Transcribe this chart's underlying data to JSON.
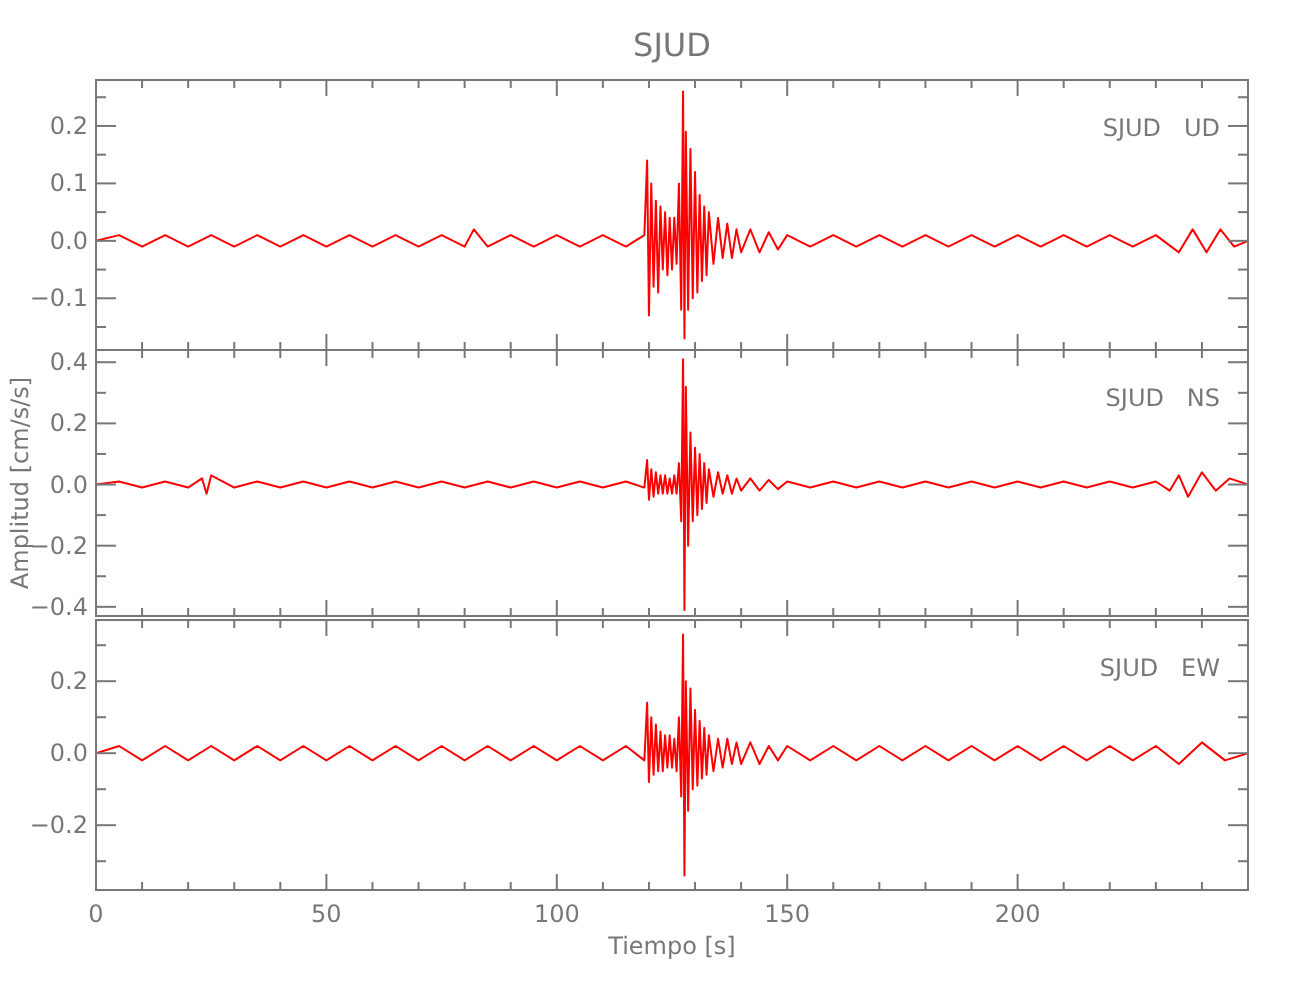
{
  "chart_data": [
    {
      "type": "line",
      "title": "SJUD",
      "annotations": [
        "SJUD   UD"
      ],
      "tick_labels": "y",
      "xlim": [
        0,
        250
      ],
      "ylim": [
        -0.19,
        0.28
      ],
      "xticks": [
        0,
        {
          "value": 10,
          "label": null
        },
        {
          "value": 20,
          "label": null
        },
        {
          "value": 30,
          "label": null
        },
        {
          "value": 40,
          "label": null
        },
        50,
        {
          "value": 60,
          "label": null
        },
        {
          "value": 70,
          "label": null
        },
        {
          "value": 80,
          "label": null
        },
        {
          "value": 90,
          "label": null
        },
        100,
        {
          "value": 110,
          "label": null
        },
        {
          "value": 120,
          "label": null
        },
        {
          "value": 130,
          "label": null
        },
        {
          "value": 140,
          "label": null
        },
        150,
        {
          "value": 160,
          "label": null
        },
        {
          "value": 170,
          "label": null
        },
        {
          "value": 180,
          "label": null
        },
        {
          "value": 190,
          "label": null
        },
        200,
        {
          "value": 210,
          "label": null
        },
        {
          "value": 220,
          "label": null
        },
        {
          "value": 230,
          "label": null
        },
        {
          "value": 240,
          "label": null
        }
      ],
      "yticks": [
        {
          "value": -0.15,
          "label": null
        },
        {
          "value": -0.1,
          "label": "−0.1"
        },
        {
          "value": -0.05,
          "label": null
        },
        {
          "value": 0,
          "label": "0.0"
        },
        {
          "value": 0.05,
          "label": null
        },
        0.1,
        {
          "value": 0.15,
          "label": null
        },
        0.2,
        {
          "value": 0.25,
          "label": null
        }
      ],
      "x": [
        0,
        5,
        10,
        15,
        20,
        25,
        30,
        35,
        40,
        45,
        50,
        55,
        60,
        65,
        70,
        75,
        80,
        82,
        85,
        90,
        95,
        100,
        105,
        110,
        115,
        119,
        119.6,
        120,
        120.5,
        121,
        121.5,
        122,
        122.5,
        123,
        123.5,
        124,
        124.5,
        125,
        125.5,
        126,
        126.5,
        127,
        127.4,
        127.7,
        128,
        128.5,
        129,
        129.5,
        130,
        130.5,
        131,
        131.5,
        132,
        132.5,
        133,
        134,
        135,
        136,
        137,
        138,
        139,
        140,
        142,
        144,
        146,
        148,
        150,
        155,
        160,
        165,
        170,
        175,
        180,
        185,
        190,
        195,
        200,
        205,
        210,
        215,
        220,
        225,
        230,
        235,
        238,
        241,
        244,
        247,
        250
      ],
      "series": [
        {
          "color": "#ff0000",
          "values": [
            0,
            0.01,
            -0.01,
            0.01,
            -0.01,
            0.01,
            -0.01,
            0.01,
            -0.01,
            0.01,
            -0.01,
            0.01,
            -0.01,
            0.01,
            -0.01,
            0.01,
            -0.01,
            0.02,
            -0.01,
            0.01,
            -0.01,
            0.01,
            -0.01,
            0.01,
            -0.01,
            0.01,
            0.14,
            -0.13,
            0.1,
            -0.08,
            0.07,
            -0.09,
            0.06,
            -0.05,
            0.05,
            -0.06,
            0.04,
            -0.05,
            0.04,
            -0.04,
            0.1,
            -0.12,
            0.26,
            -0.17,
            0.19,
            -0.12,
            0.16,
            -0.1,
            0.12,
            -0.09,
            0.08,
            -0.07,
            0.06,
            -0.06,
            0.05,
            -0.04,
            0.04,
            -0.03,
            0.03,
            -0.03,
            0.02,
            -0.02,
            0.02,
            -0.02,
            0.015,
            -0.015,
            0.01,
            -0.01,
            0.01,
            -0.01,
            0.01,
            -0.01,
            0.01,
            -0.01,
            0.01,
            -0.01,
            0.01,
            -0.01,
            0.01,
            -0.01,
            0.01,
            -0.01,
            0.01,
            -0.02,
            0.02,
            -0.02,
            0.02,
            -0.01,
            0
          ]
        }
      ]
    },
    {
      "type": "line",
      "ylabel": "Amplitud [cm/s/s]",
      "annotations": [
        "SJUD   NS"
      ],
      "tick_labels": "y",
      "xlim": [
        0,
        250
      ],
      "ylim": [
        -0.43,
        0.44
      ],
      "xticks": [
        0,
        {
          "value": 10,
          "label": null
        },
        {
          "value": 20,
          "label": null
        },
        {
          "value": 30,
          "label": null
        },
        {
          "value": 40,
          "label": null
        },
        50,
        {
          "value": 60,
          "label": null
        },
        {
          "value": 70,
          "label": null
        },
        {
          "value": 80,
          "label": null
        },
        {
          "value": 90,
          "label": null
        },
        100,
        {
          "value": 110,
          "label": null
        },
        {
          "value": 120,
          "label": null
        },
        {
          "value": 130,
          "label": null
        },
        {
          "value": 140,
          "label": null
        },
        150,
        {
          "value": 160,
          "label": null
        },
        {
          "value": 170,
          "label": null
        },
        {
          "value": 180,
          "label": null
        },
        {
          "value": 190,
          "label": null
        },
        200,
        {
          "value": 210,
          "label": null
        },
        {
          "value": 220,
          "label": null
        },
        {
          "value": 230,
          "label": null
        },
        {
          "value": 240,
          "label": null
        }
      ],
      "yticks": [
        {
          "value": -0.4,
          "label": "−0.4"
        },
        {
          "value": -0.3,
          "label": null
        },
        {
          "value": -0.2,
          "label": "−0.2"
        },
        {
          "value": -0.1,
          "label": null
        },
        {
          "value": 0,
          "label": "0.0"
        },
        {
          "value": 0.1,
          "label": null
        },
        0.2,
        {
          "value": 0.3,
          "label": null
        },
        0.4
      ],
      "x": [
        0,
        5,
        10,
        15,
        20,
        23,
        24,
        25,
        30,
        35,
        40,
        45,
        50,
        55,
        60,
        65,
        70,
        75,
        80,
        85,
        90,
        95,
        100,
        105,
        110,
        115,
        119,
        119.6,
        120,
        120.5,
        121,
        121.5,
        122,
        122.5,
        123,
        123.5,
        124,
        124.5,
        125,
        125.5,
        126,
        126.5,
        127,
        127.4,
        127.7,
        128,
        128.5,
        129,
        129.5,
        130,
        130.5,
        131,
        131.5,
        132,
        132.5,
        133,
        134,
        135,
        136,
        137,
        138,
        139,
        140,
        142,
        144,
        146,
        148,
        150,
        155,
        160,
        165,
        170,
        175,
        180,
        185,
        190,
        195,
        200,
        205,
        210,
        215,
        220,
        225,
        230,
        233,
        235,
        237,
        240,
        243,
        246,
        250
      ],
      "series": [
        {
          "color": "#ff0000",
          "values": [
            0,
            0.01,
            -0.01,
            0.01,
            -0.01,
            0.02,
            -0.03,
            0.03,
            -0.01,
            0.01,
            -0.01,
            0.01,
            -0.01,
            0.01,
            -0.01,
            0.01,
            -0.01,
            0.01,
            -0.01,
            0.01,
            -0.01,
            0.01,
            -0.01,
            0.01,
            -0.01,
            0.01,
            -0.01,
            0.08,
            -0.05,
            0.05,
            -0.04,
            0.04,
            -0.03,
            0.03,
            -0.03,
            0.03,
            -0.03,
            0.02,
            -0.03,
            0.03,
            -0.03,
            0.07,
            -0.12,
            0.41,
            -0.41,
            0.32,
            -0.2,
            0.17,
            -0.12,
            0.12,
            -0.1,
            0.1,
            -0.08,
            0.07,
            -0.06,
            0.05,
            -0.04,
            0.04,
            -0.03,
            0.03,
            -0.03,
            0.02,
            -0.02,
            0.02,
            -0.02,
            0.015,
            -0.015,
            0.01,
            -0.01,
            0.01,
            -0.01,
            0.01,
            -0.01,
            0.01,
            -0.01,
            0.01,
            -0.01,
            0.01,
            -0.01,
            0.01,
            -0.01,
            0.01,
            -0.01,
            0.01,
            -0.02,
            0.03,
            -0.04,
            0.04,
            -0.02,
            0.02,
            0
          ]
        }
      ]
    },
    {
      "type": "line",
      "xlabel": "Tiempo [s]",
      "annotations": [
        "SJUD   EW"
      ],
      "xlim": [
        0,
        250
      ],
      "ylim": [
        -0.38,
        0.37
      ],
      "xticks": [
        0,
        {
          "value": 10,
          "label": null
        },
        {
          "value": 20,
          "label": null
        },
        {
          "value": 30,
          "label": null
        },
        {
          "value": 40,
          "label": null
        },
        50,
        {
          "value": 60,
          "label": null
        },
        {
          "value": 70,
          "label": null
        },
        {
          "value": 80,
          "label": null
        },
        {
          "value": 90,
          "label": null
        },
        100,
        {
          "value": 110,
          "label": null
        },
        {
          "value": 120,
          "label": null
        },
        {
          "value": 130,
          "label": null
        },
        {
          "value": 140,
          "label": null
        },
        150,
        {
          "value": 160,
          "label": null
        },
        {
          "value": 170,
          "label": null
        },
        {
          "value": 180,
          "label": null
        },
        {
          "value": 190,
          "label": null
        },
        200,
        {
          "value": 210,
          "label": null
        },
        {
          "value": 220,
          "label": null
        },
        {
          "value": 230,
          "label": null
        },
        {
          "value": 240,
          "label": null
        }
      ],
      "yticks": [
        {
          "value": -0.3,
          "label": null
        },
        {
          "value": -0.2,
          "label": "−0.2"
        },
        {
          "value": -0.1,
          "label": null
        },
        {
          "value": 0,
          "label": "0.0"
        },
        {
          "value": 0.1,
          "label": null
        },
        0.2,
        {
          "value": 0.3,
          "label": null
        }
      ],
      "x": [
        0,
        5,
        10,
        15,
        20,
        25,
        30,
        35,
        40,
        45,
        50,
        55,
        60,
        65,
        70,
        75,
        80,
        85,
        90,
        95,
        100,
        105,
        110,
        115,
        119,
        119.6,
        120,
        120.5,
        121,
        121.5,
        122,
        122.5,
        123,
        123.5,
        124,
        124.5,
        125,
        125.5,
        126,
        126.5,
        127,
        127.4,
        127.7,
        128,
        128.5,
        129,
        129.5,
        130,
        130.5,
        131,
        131.5,
        132,
        132.5,
        133,
        134,
        135,
        136,
        137,
        138,
        139,
        140,
        142,
        144,
        146,
        148,
        150,
        155,
        160,
        165,
        170,
        175,
        180,
        185,
        190,
        195,
        200,
        205,
        210,
        215,
        220,
        225,
        230,
        235,
        240,
        245,
        250
      ],
      "series": [
        {
          "color": "#ff0000",
          "values": [
            0,
            0.02,
            -0.02,
            0.02,
            -0.02,
            0.02,
            -0.02,
            0.02,
            -0.02,
            0.02,
            -0.02,
            0.02,
            -0.02,
            0.02,
            -0.02,
            0.02,
            -0.02,
            0.02,
            -0.02,
            0.02,
            -0.02,
            0.02,
            -0.02,
            0.02,
            -0.02,
            0.14,
            -0.08,
            0.1,
            -0.06,
            0.08,
            -0.05,
            0.06,
            -0.05,
            0.05,
            -0.04,
            0.05,
            -0.04,
            0.04,
            -0.05,
            0.1,
            -0.12,
            0.33,
            -0.34,
            0.2,
            -0.16,
            0.18,
            -0.1,
            0.12,
            -0.09,
            0.09,
            -0.07,
            0.07,
            -0.06,
            0.05,
            -0.05,
            0.04,
            -0.04,
            0.04,
            -0.03,
            0.03,
            -0.03,
            0.03,
            -0.03,
            0.02,
            -0.02,
            0.02,
            -0.02,
            0.02,
            -0.02,
            0.02,
            -0.02,
            0.02,
            -0.02,
            0.02,
            -0.02,
            0.02,
            -0.02,
            0.02,
            -0.02,
            0.02,
            -0.02,
            0.02,
            -0.03,
            0.03,
            -0.02,
            0
          ]
        }
      ]
    }
  ]
}
